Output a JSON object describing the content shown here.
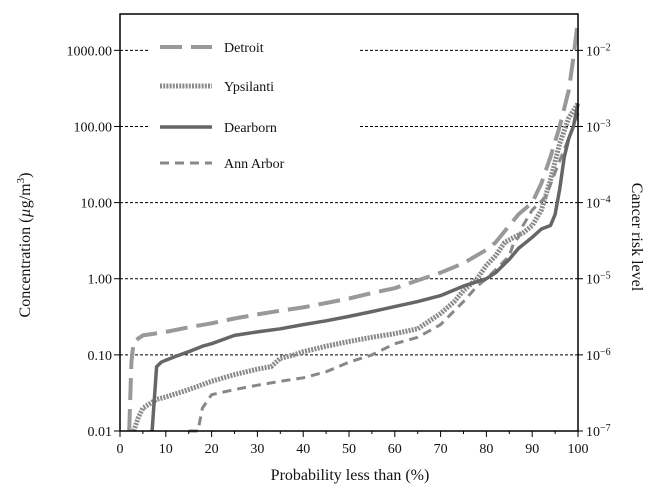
{
  "chart_data": {
    "type": "line",
    "xlabel": "Probability less than (%)",
    "ylabel": "Concentration (µg/m³)",
    "ylabel_parts": {
      "main": "Concentration (",
      "unit_mu": "µ",
      "unit_rest": "g/m",
      "unit_sup": "3",
      "close": ")"
    },
    "y2label": "Cancer risk level",
    "xlim": [
      0,
      100
    ],
    "ylim": [
      0.01,
      3000
    ],
    "yscale": "log",
    "x_ticks": [
      0,
      10,
      20,
      30,
      40,
      50,
      60,
      70,
      80,
      90,
      100
    ],
    "x_tick_labels": [
      "0",
      "10",
      "20",
      "30",
      "40",
      "50",
      "60",
      "70",
      "80",
      "90",
      "100"
    ],
    "y_ticks": [
      0.01,
      0.1,
      1,
      10,
      100,
      1000
    ],
    "y_tick_labels": [
      "0.01",
      "0.10",
      "1.00",
      "10.00",
      "100.00",
      "1000.00"
    ],
    "y2_ticks": [
      {
        "y": 0.01,
        "base": "10",
        "exp": "−7"
      },
      {
        "y": 0.1,
        "base": "10",
        "exp": "−6"
      },
      {
        "y": 1,
        "base": "10",
        "exp": "−5"
      },
      {
        "y": 10,
        "base": "10",
        "exp": "−4"
      },
      {
        "y": 100,
        "base": "10",
        "exp": "−3"
      },
      {
        "y": 1000,
        "base": "10",
        "exp": "−2"
      }
    ],
    "reference_lines_y": [
      0.1,
      1,
      10,
      100,
      1000
    ],
    "legend_position": "top-left",
    "series": [
      {
        "name": "Detroit",
        "color": "#999999",
        "style": "long-dash",
        "x": [
          2,
          2.5,
          3,
          5,
          10,
          15,
          20,
          25,
          30,
          35,
          40,
          45,
          50,
          55,
          60,
          65,
          70,
          75,
          80,
          82,
          85,
          87,
          90,
          92,
          94,
          96,
          98,
          99,
          100
        ],
        "y": [
          0.01,
          0.08,
          0.15,
          0.18,
          0.2,
          0.23,
          0.26,
          0.3,
          0.34,
          0.38,
          0.42,
          0.48,
          0.55,
          0.65,
          0.75,
          0.95,
          1.2,
          1.6,
          2.4,
          3,
          5,
          7,
          10,
          18,
          40,
          100,
          300,
          800,
          2500
        ]
      },
      {
        "name": "Ypsilanti",
        "color": "#8a8a8a",
        "style": "dotted-thick",
        "x": [
          3,
          4,
          5,
          8,
          10,
          15,
          20,
          25,
          30,
          33,
          35,
          38,
          40,
          45,
          50,
          55,
          60,
          65,
          70,
          73,
          75,
          78,
          80,
          82,
          84,
          86,
          88,
          90,
          92,
          94,
          96,
          98,
          100
        ],
        "y": [
          0.01,
          0.015,
          0.02,
          0.026,
          0.028,
          0.035,
          0.045,
          0.055,
          0.065,
          0.07,
          0.09,
          0.1,
          0.11,
          0.13,
          0.15,
          0.17,
          0.19,
          0.22,
          0.35,
          0.5,
          0.7,
          1,
          1.5,
          2,
          3,
          3.5,
          4,
          5,
          8,
          20,
          60,
          130,
          200
        ]
      },
      {
        "name": "Dearborn",
        "color": "#666666",
        "style": "solid",
        "x": [
          7,
          8,
          9,
          10,
          12,
          15,
          18,
          20,
          25,
          30,
          35,
          40,
          45,
          50,
          55,
          60,
          65,
          70,
          75,
          80,
          82,
          85,
          87,
          90,
          92,
          94,
          95,
          96,
          97,
          98,
          99,
          100
        ],
        "y": [
          0.01,
          0.07,
          0.08,
          0.085,
          0.095,
          0.11,
          0.13,
          0.14,
          0.18,
          0.2,
          0.22,
          0.25,
          0.28,
          0.32,
          0.37,
          0.43,
          0.5,
          0.6,
          0.8,
          1,
          1.2,
          1.8,
          2.5,
          3.5,
          4.5,
          5,
          7,
          15,
          40,
          70,
          100,
          200
        ]
      },
      {
        "name": "Ann Arbor",
        "color": "#888888",
        "style": "short-dash",
        "x": [
          15,
          17,
          18,
          20,
          25,
          30,
          35,
          40,
          45,
          50,
          55,
          60,
          65,
          70,
          75,
          78,
          80,
          83,
          85,
          86,
          87,
          88,
          90,
          93,
          95,
          97,
          99,
          100
        ],
        "y": [
          0.01,
          0.01,
          0.02,
          0.03,
          0.035,
          0.04,
          0.045,
          0.05,
          0.06,
          0.08,
          0.1,
          0.14,
          0.17,
          0.25,
          0.5,
          0.8,
          1,
          1.5,
          2,
          3,
          3.5,
          5,
          8,
          12,
          25,
          50,
          100,
          150
        ]
      }
    ]
  }
}
